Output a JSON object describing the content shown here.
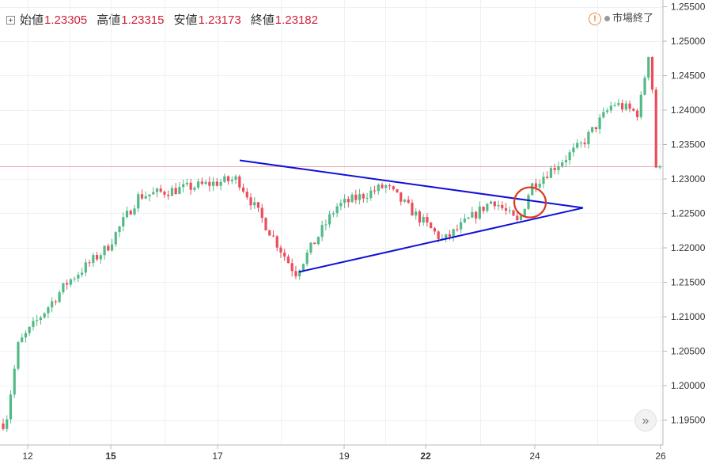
{
  "legend": {
    "open_label": "始値",
    "open_value": "1.23305",
    "high_label": "高値",
    "high_value": "1.23315",
    "low_label": "安値",
    "low_value": "1.23173",
    "close_label": "終値",
    "close_value": "1.23182"
  },
  "status": {
    "text": "市場終了",
    "warn_symbol": "!"
  },
  "forward_button": {
    "symbol": "»"
  },
  "colors": {
    "up": "#53b987",
    "down": "#eb4d5c",
    "trendline": "#1010d8",
    "circle": "#d83a1e",
    "price_line": "#f4a6ad"
  },
  "chart_data": {
    "type": "candlestick",
    "title": "",
    "y_axis": {
      "ticks": [
        "1.25500",
        "1.25000",
        "1.24500",
        "1.24000",
        "1.23500",
        "1.23000",
        "1.22500",
        "1.22000",
        "1.21500",
        "1.21000",
        "1.20500",
        "1.20000",
        "1.19500"
      ],
      "range": [
        1.193,
        1.256
      ]
    },
    "x_axis": {
      "ticks": [
        {
          "label": "12",
          "bold": false
        },
        {
          "label": "15",
          "bold": true
        },
        {
          "label": "17",
          "bold": false
        },
        {
          "label": "19",
          "bold": false
        },
        {
          "label": "22",
          "bold": true
        },
        {
          "label": "24",
          "bold": false
        },
        {
          "label": "26",
          "bold": false
        }
      ]
    },
    "current_price": 1.23182,
    "grid": true,
    "key_points": [
      {
        "time": "12",
        "price": 1.1945
      },
      {
        "time": "12-13",
        "price": 1.206
      },
      {
        "time": "14",
        "price": 1.215
      },
      {
        "time": "15",
        "price": 1.22
      },
      {
        "time": "15-16",
        "price": 1.2275
      },
      {
        "time": "17",
        "price": 1.23
      },
      {
        "time": "18",
        "price": 1.2163
      },
      {
        "time": "19",
        "price": 1.226
      },
      {
        "time": "20",
        "price": 1.229
      },
      {
        "time": "22",
        "price": 1.221
      },
      {
        "time": "23",
        "price": 1.227
      },
      {
        "time": "24",
        "price": 1.2235
      },
      {
        "time": "24",
        "price": 1.229
      },
      {
        "time": "25",
        "price": 1.235
      },
      {
        "time": "25-26",
        "price": 1.241
      },
      {
        "time": "26",
        "price": 1.2395
      },
      {
        "time": "26",
        "price": 1.25
      },
      {
        "time": "26",
        "price": 1.23182
      }
    ],
    "annotations": [
      {
        "type": "trendline",
        "role": "upper",
        "from": {
          "price": 1.2327
        },
        "to": {
          "price": 1.2258
        }
      },
      {
        "type": "trendline",
        "role": "lower",
        "from": {
          "price": 1.2165
        },
        "to": {
          "price": 1.2258
        }
      },
      {
        "type": "circle",
        "role": "breakout",
        "price": 1.2266
      }
    ]
  }
}
